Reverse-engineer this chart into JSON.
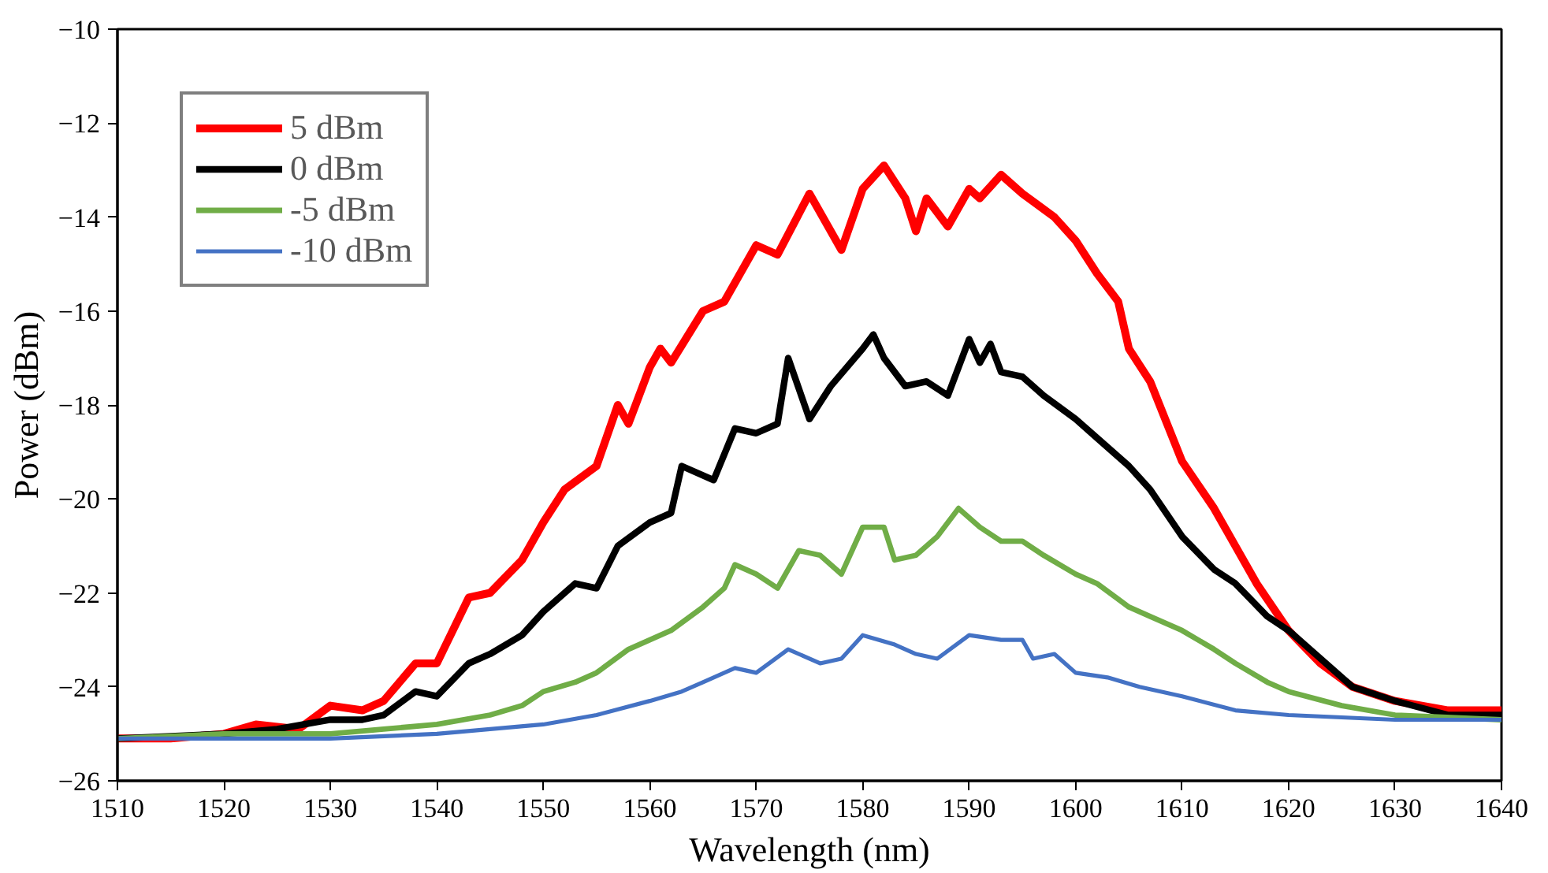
{
  "chart_data": {
    "type": "line",
    "xlabel": "Wavelength (nm)",
    "ylabel": "Power (dBm)",
    "xlim": [
      1510,
      1640
    ],
    "xticks": [
      1510,
      1520,
      1530,
      1540,
      1550,
      1560,
      1570,
      1580,
      1590,
      1600,
      1610,
      1620,
      1630,
      1640
    ],
    "ylim": [
      -26,
      -10
    ],
    "yticks": [
      -26,
      -24,
      -22,
      -20,
      -18,
      -16,
      -14,
      -12,
      -10
    ],
    "grid": false,
    "legend": "top left",
    "marker": "none",
    "line_style": "solid",
    "series": [
      {
        "name": "5 dBm",
        "color": "#ff0000",
        "x": [
          1510,
          1515,
          1520,
          1523,
          1527,
          1530,
          1533,
          1535,
          1538,
          1540,
          1543,
          1545,
          1548,
          1550,
          1552,
          1555,
          1557,
          1558,
          1560,
          1561,
          1562,
          1565,
          1567,
          1570,
          1572,
          1575,
          1578,
          1580,
          1582,
          1584,
          1585,
          1586,
          1588,
          1590,
          1591,
          1593,
          1595,
          1598,
          1600,
          1602,
          1604,
          1605,
          1607,
          1610,
          1613,
          1615,
          1617,
          1620,
          1623,
          1626,
          1630,
          1635,
          1640
        ],
        "values": [
          -25.1,
          -25.1,
          -25.0,
          -24.8,
          -24.9,
          -24.4,
          -24.5,
          -24.3,
          -23.5,
          -23.5,
          -22.1,
          -22.0,
          -21.3,
          -20.5,
          -19.8,
          -19.3,
          -18.0,
          -18.4,
          -17.2,
          -16.8,
          -17.1,
          -16.0,
          -15.8,
          -14.6,
          -14.8,
          -13.5,
          -14.7,
          -13.4,
          -12.9,
          -13.6,
          -14.3,
          -13.6,
          -14.2,
          -13.4,
          -13.6,
          -13.1,
          -13.5,
          -14.0,
          -14.5,
          -15.2,
          -15.8,
          -16.8,
          -17.5,
          -19.2,
          -20.2,
          -21.0,
          -21.8,
          -22.8,
          -23.5,
          -24.0,
          -24.3,
          -24.5,
          -24.5
        ]
      },
      {
        "name": "0 dBm",
        "color": "#000000",
        "x": [
          1510,
          1520,
          1525,
          1530,
          1533,
          1535,
          1538,
          1540,
          1543,
          1545,
          1548,
          1550,
          1553,
          1555,
          1557,
          1560,
          1562,
          1563,
          1566,
          1568,
          1570,
          1572,
          1573,
          1575,
          1577,
          1580,
          1581,
          1582,
          1584,
          1586,
          1588,
          1590,
          1591,
          1592,
          1593,
          1595,
          1597,
          1600,
          1602,
          1605,
          1607,
          1610,
          1613,
          1615,
          1618,
          1620,
          1623,
          1626,
          1630,
          1635,
          1640
        ],
        "values": [
          -25.1,
          -25.0,
          -24.9,
          -24.7,
          -24.7,
          -24.6,
          -24.1,
          -24.2,
          -23.5,
          -23.3,
          -22.9,
          -22.4,
          -21.8,
          -21.9,
          -21.0,
          -20.5,
          -20.3,
          -19.3,
          -19.6,
          -18.5,
          -18.6,
          -18.4,
          -17.0,
          -18.3,
          -17.6,
          -16.8,
          -16.5,
          -17.0,
          -17.6,
          -17.5,
          -17.8,
          -16.6,
          -17.1,
          -16.7,
          -17.3,
          -17.4,
          -17.8,
          -18.3,
          -18.7,
          -19.3,
          -19.8,
          -20.8,
          -21.5,
          -21.8,
          -22.5,
          -22.8,
          -23.4,
          -24.0,
          -24.3,
          -24.6,
          -24.6
        ]
      },
      {
        "name": "-5 dBm",
        "color": "#70ad47",
        "x": [
          1510,
          1520,
          1530,
          1535,
          1540,
          1545,
          1548,
          1550,
          1553,
          1555,
          1558,
          1560,
          1562,
          1565,
          1567,
          1568,
          1570,
          1572,
          1574,
          1576,
          1578,
          1580,
          1582,
          1583,
          1585,
          1587,
          1589,
          1591,
          1593,
          1595,
          1597,
          1600,
          1602,
          1605,
          1607,
          1610,
          1613,
          1615,
          1618,
          1620,
          1625,
          1630,
          1640
        ],
        "values": [
          -25.1,
          -25.0,
          -25.0,
          -24.9,
          -24.8,
          -24.6,
          -24.4,
          -24.1,
          -23.9,
          -23.7,
          -23.2,
          -23.0,
          -22.8,
          -22.3,
          -21.9,
          -21.4,
          -21.6,
          -21.9,
          -21.1,
          -21.2,
          -21.6,
          -20.6,
          -20.6,
          -21.3,
          -21.2,
          -20.8,
          -20.2,
          -20.6,
          -20.9,
          -20.9,
          -21.2,
          -21.6,
          -21.8,
          -22.3,
          -22.5,
          -22.8,
          -23.2,
          -23.5,
          -23.9,
          -24.1,
          -24.4,
          -24.6,
          -24.7
        ]
      },
      {
        "name": "-10 dBm",
        "color": "#4472c4",
        "x": [
          1510,
          1530,
          1540,
          1550,
          1555,
          1560,
          1563,
          1565,
          1568,
          1570,
          1573,
          1576,
          1578,
          1580,
          1583,
          1585,
          1587,
          1590,
          1593,
          1595,
          1596,
          1598,
          1600,
          1603,
          1606,
          1610,
          1615,
          1620,
          1630,
          1640
        ],
        "values": [
          -25.1,
          -25.1,
          -25.0,
          -24.8,
          -24.6,
          -24.3,
          -24.1,
          -23.9,
          -23.6,
          -23.7,
          -23.2,
          -23.5,
          -23.4,
          -22.9,
          -23.1,
          -23.3,
          -23.4,
          -22.9,
          -23.0,
          -23.0,
          -23.4,
          -23.3,
          -23.7,
          -23.8,
          -24.0,
          -24.2,
          -24.5,
          -24.6,
          -24.7,
          -24.7
        ]
      }
    ]
  }
}
